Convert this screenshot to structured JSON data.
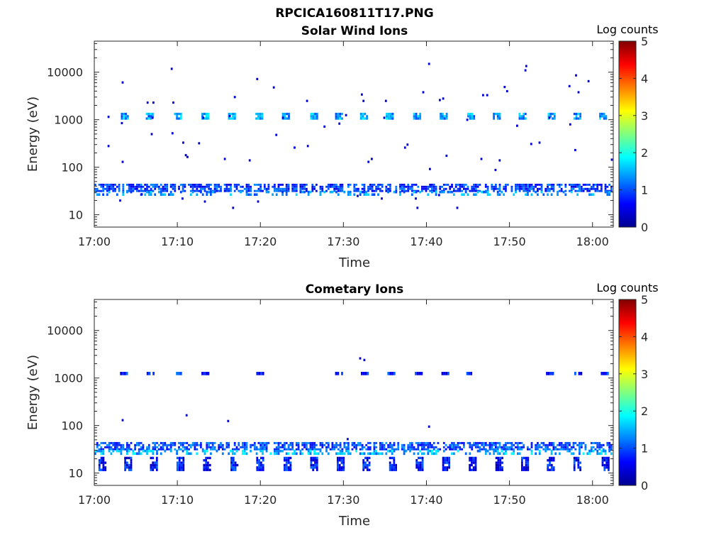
{
  "figure": {
    "title": "RPCICA160811T17.PNG"
  },
  "chart_data": [
    {
      "type": "heatmap",
      "title": "Solar Wind Ions",
      "xlabel": "Time",
      "ylabel": "Energy (eV)",
      "x_ticks": [
        "17:00",
        "17:10",
        "17:20",
        "17:30",
        "17:40",
        "17:50",
        "18:00"
      ],
      "x_range_minutes": [
        0,
        62.5
      ],
      "y_scale": "log",
      "y_ticks": [
        "10",
        "100",
        "1000",
        "10000"
      ],
      "y_range_eV": [
        5.5,
        45000
      ],
      "colorbar": {
        "label": "Log counts",
        "ticks": [
          "0",
          "1",
          "2",
          "3",
          "4",
          "5"
        ],
        "range": [
          0,
          5
        ],
        "colormap": "jet"
      },
      "bands": [
        {
          "energy_eV": [
            30,
            45
          ],
          "level": 0.8,
          "density": 0.72,
          "t_range": [
            0,
            62.5
          ]
        },
        {
          "energy_eV": [
            25,
            32
          ],
          "level": 1.2,
          "density": 0.35,
          "t_range": [
            0,
            62.5
          ]
        },
        {
          "energy_eV": [
            1000,
            1400
          ],
          "level": 1.3,
          "density": 0.9,
          "bursts": [
            3.2,
            6.2,
            9.6,
            12.9,
            16.1,
            19.4,
            22.6,
            26.0,
            29.0,
            32.0,
            35.1,
            38.4,
            41.6,
            44.9,
            48.0,
            51.1,
            54.6,
            57.7,
            60.8
          ]
        }
      ],
      "points": [
        {
          "t": 9.2,
          "e": 11800
        },
        {
          "t": 19.5,
          "e": 7200
        },
        {
          "t": 40.2,
          "e": 15000
        },
        {
          "t": 51.9,
          "e": 13500
        },
        {
          "t": 51.8,
          "e": 11000
        },
        {
          "t": 57.9,
          "e": 8600
        },
        {
          "t": 3.3,
          "e": 6100
        },
        {
          "t": 21.5,
          "e": 4800
        },
        {
          "t": 49.3,
          "e": 4900
        },
        {
          "t": 57.1,
          "e": 5100
        },
        {
          "t": 59.4,
          "e": 6500
        },
        {
          "t": 16.8,
          "e": 3000
        },
        {
          "t": 39.5,
          "e": 3800
        },
        {
          "t": 46.7,
          "e": 3300
        },
        {
          "t": 47.2,
          "e": 3300
        },
        {
          "t": 49.6,
          "e": 4000
        },
        {
          "t": 58.2,
          "e": 3800
        },
        {
          "t": 6.3,
          "e": 2300
        },
        {
          "t": 7.0,
          "e": 2300
        },
        {
          "t": 9.4,
          "e": 2300
        },
        {
          "t": 25.5,
          "e": 2500
        },
        {
          "t": 32.3,
          "e": 2500
        },
        {
          "t": 35.0,
          "e": 2500
        },
        {
          "t": 41.5,
          "e": 2600
        },
        {
          "t": 41.9,
          "e": 2800
        },
        {
          "t": 32.1,
          "e": 3400
        },
        {
          "t": 1.6,
          "e": 280
        },
        {
          "t": 3.3,
          "e": 130
        },
        {
          "t": 6.8,
          "e": 500
        },
        {
          "t": 9.3,
          "e": 520
        },
        {
          "t": 10.6,
          "e": 330
        },
        {
          "t": 12.5,
          "e": 320
        },
        {
          "t": 10.9,
          "e": 180
        },
        {
          "t": 11.1,
          "e": 165
        },
        {
          "t": 15.6,
          "e": 150
        },
        {
          "t": 18.6,
          "e": 140
        },
        {
          "t": 21.8,
          "e": 480
        },
        {
          "t": 24.0,
          "e": 260
        },
        {
          "t": 25.6,
          "e": 280
        },
        {
          "t": 27.6,
          "e": 720
        },
        {
          "t": 29.4,
          "e": 830
        },
        {
          "t": 30.2,
          "e": 1250
        },
        {
          "t": 32.9,
          "e": 130
        },
        {
          "t": 33.3,
          "e": 150
        },
        {
          "t": 37.3,
          "e": 260
        },
        {
          "t": 37.6,
          "e": 300
        },
        {
          "t": 40.3,
          "e": 92
        },
        {
          "t": 42.3,
          "e": 175
        },
        {
          "t": 46.5,
          "e": 150
        },
        {
          "t": 48.2,
          "e": 88
        },
        {
          "t": 48.7,
          "e": 140
        },
        {
          "t": 50.8,
          "e": 750
        },
        {
          "t": 52.5,
          "e": 310
        },
        {
          "t": 53.5,
          "e": 330
        },
        {
          "t": 57.2,
          "e": 800
        },
        {
          "t": 57.8,
          "e": 230
        },
        {
          "t": 62.2,
          "e": 145
        },
        {
          "t": 3.2,
          "e": 850
        },
        {
          "t": 6.9,
          "e": 1100
        },
        {
          "t": 13.0,
          "e": 1100
        },
        {
          "t": 16.2,
          "e": 1200
        },
        {
          "t": 22.6,
          "e": 1100
        },
        {
          "t": 34.8,
          "e": 1100
        },
        {
          "t": 44.8,
          "e": 1000
        },
        {
          "t": 54.7,
          "e": 1100
        },
        {
          "t": 1.6,
          "e": 1150
        },
        {
          "t": 3.0,
          "e": 20
        },
        {
          "t": 5.6,
          "e": 27
        },
        {
          "t": 10.5,
          "e": 22
        },
        {
          "t": 13.2,
          "e": 19
        },
        {
          "t": 16.6,
          "e": 14
        },
        {
          "t": 19.6,
          "e": 19
        },
        {
          "t": 34.5,
          "e": 22
        },
        {
          "t": 38.6,
          "e": 22
        },
        {
          "t": 38.8,
          "e": 14
        },
        {
          "t": 41.4,
          "e": 26
        },
        {
          "t": 43.6,
          "e": 14
        },
        {
          "t": 31.6,
          "e": 25
        }
      ]
    },
    {
      "type": "heatmap",
      "title": "Cometary Ions",
      "xlabel": "Time",
      "ylabel": "Energy (eV)",
      "x_ticks": [
        "17:00",
        "17:10",
        "17:20",
        "17:30",
        "17:40",
        "17:50",
        "18:00"
      ],
      "x_range_minutes": [
        0,
        62.5
      ],
      "y_scale": "log",
      "y_ticks": [
        "10",
        "100",
        "1000",
        "10000"
      ],
      "y_range_eV": [
        5.5,
        45000
      ],
      "colorbar": {
        "label": "Log counts",
        "ticks": [
          "0",
          "1",
          "2",
          "3",
          "4",
          "5"
        ],
        "range": [
          0,
          5
        ],
        "colormap": "jet"
      },
      "bands": [
        {
          "energy_eV": [
            30,
            45
          ],
          "level": 0.9,
          "density": 0.7,
          "t_range": [
            0,
            62.5
          ]
        },
        {
          "energy_eV": [
            24,
            31
          ],
          "level": 1.4,
          "density": 0.45,
          "t_range": [
            0,
            62.5
          ]
        },
        {
          "energy_eV": [
            11,
            22
          ],
          "level": 0.6,
          "density": 0.8,
          "bursts": [
            0.5,
            3.6,
            6.7,
            9.9,
            13.1,
            16.4,
            19.5,
            22.8,
            26.0,
            29.2,
            32.3,
            35.5,
            38.7,
            41.9,
            45.1,
            48.3,
            51.4,
            54.5,
            57.7,
            61.1
          ]
        },
        {
          "energy_eV": [
            1150,
            1350
          ],
          "level": 0.7,
          "density": 0.9,
          "bursts": [
            3.1,
            6.3,
            9.6,
            12.9,
            19.5,
            29.0,
            32.1,
            35.3,
            38.6,
            41.8,
            44.8,
            54.4,
            57.8,
            61.0
          ]
        }
      ],
      "points": [
        {
          "t": 3.3,
          "e": 130
        },
        {
          "t": 11.0,
          "e": 165
        },
        {
          "t": 16.0,
          "e": 125
        },
        {
          "t": 40.2,
          "e": 95
        },
        {
          "t": 31.9,
          "e": 2600
        },
        {
          "t": 32.4,
          "e": 2400
        },
        {
          "t": 30.4,
          "e": 52
        }
      ]
    }
  ]
}
